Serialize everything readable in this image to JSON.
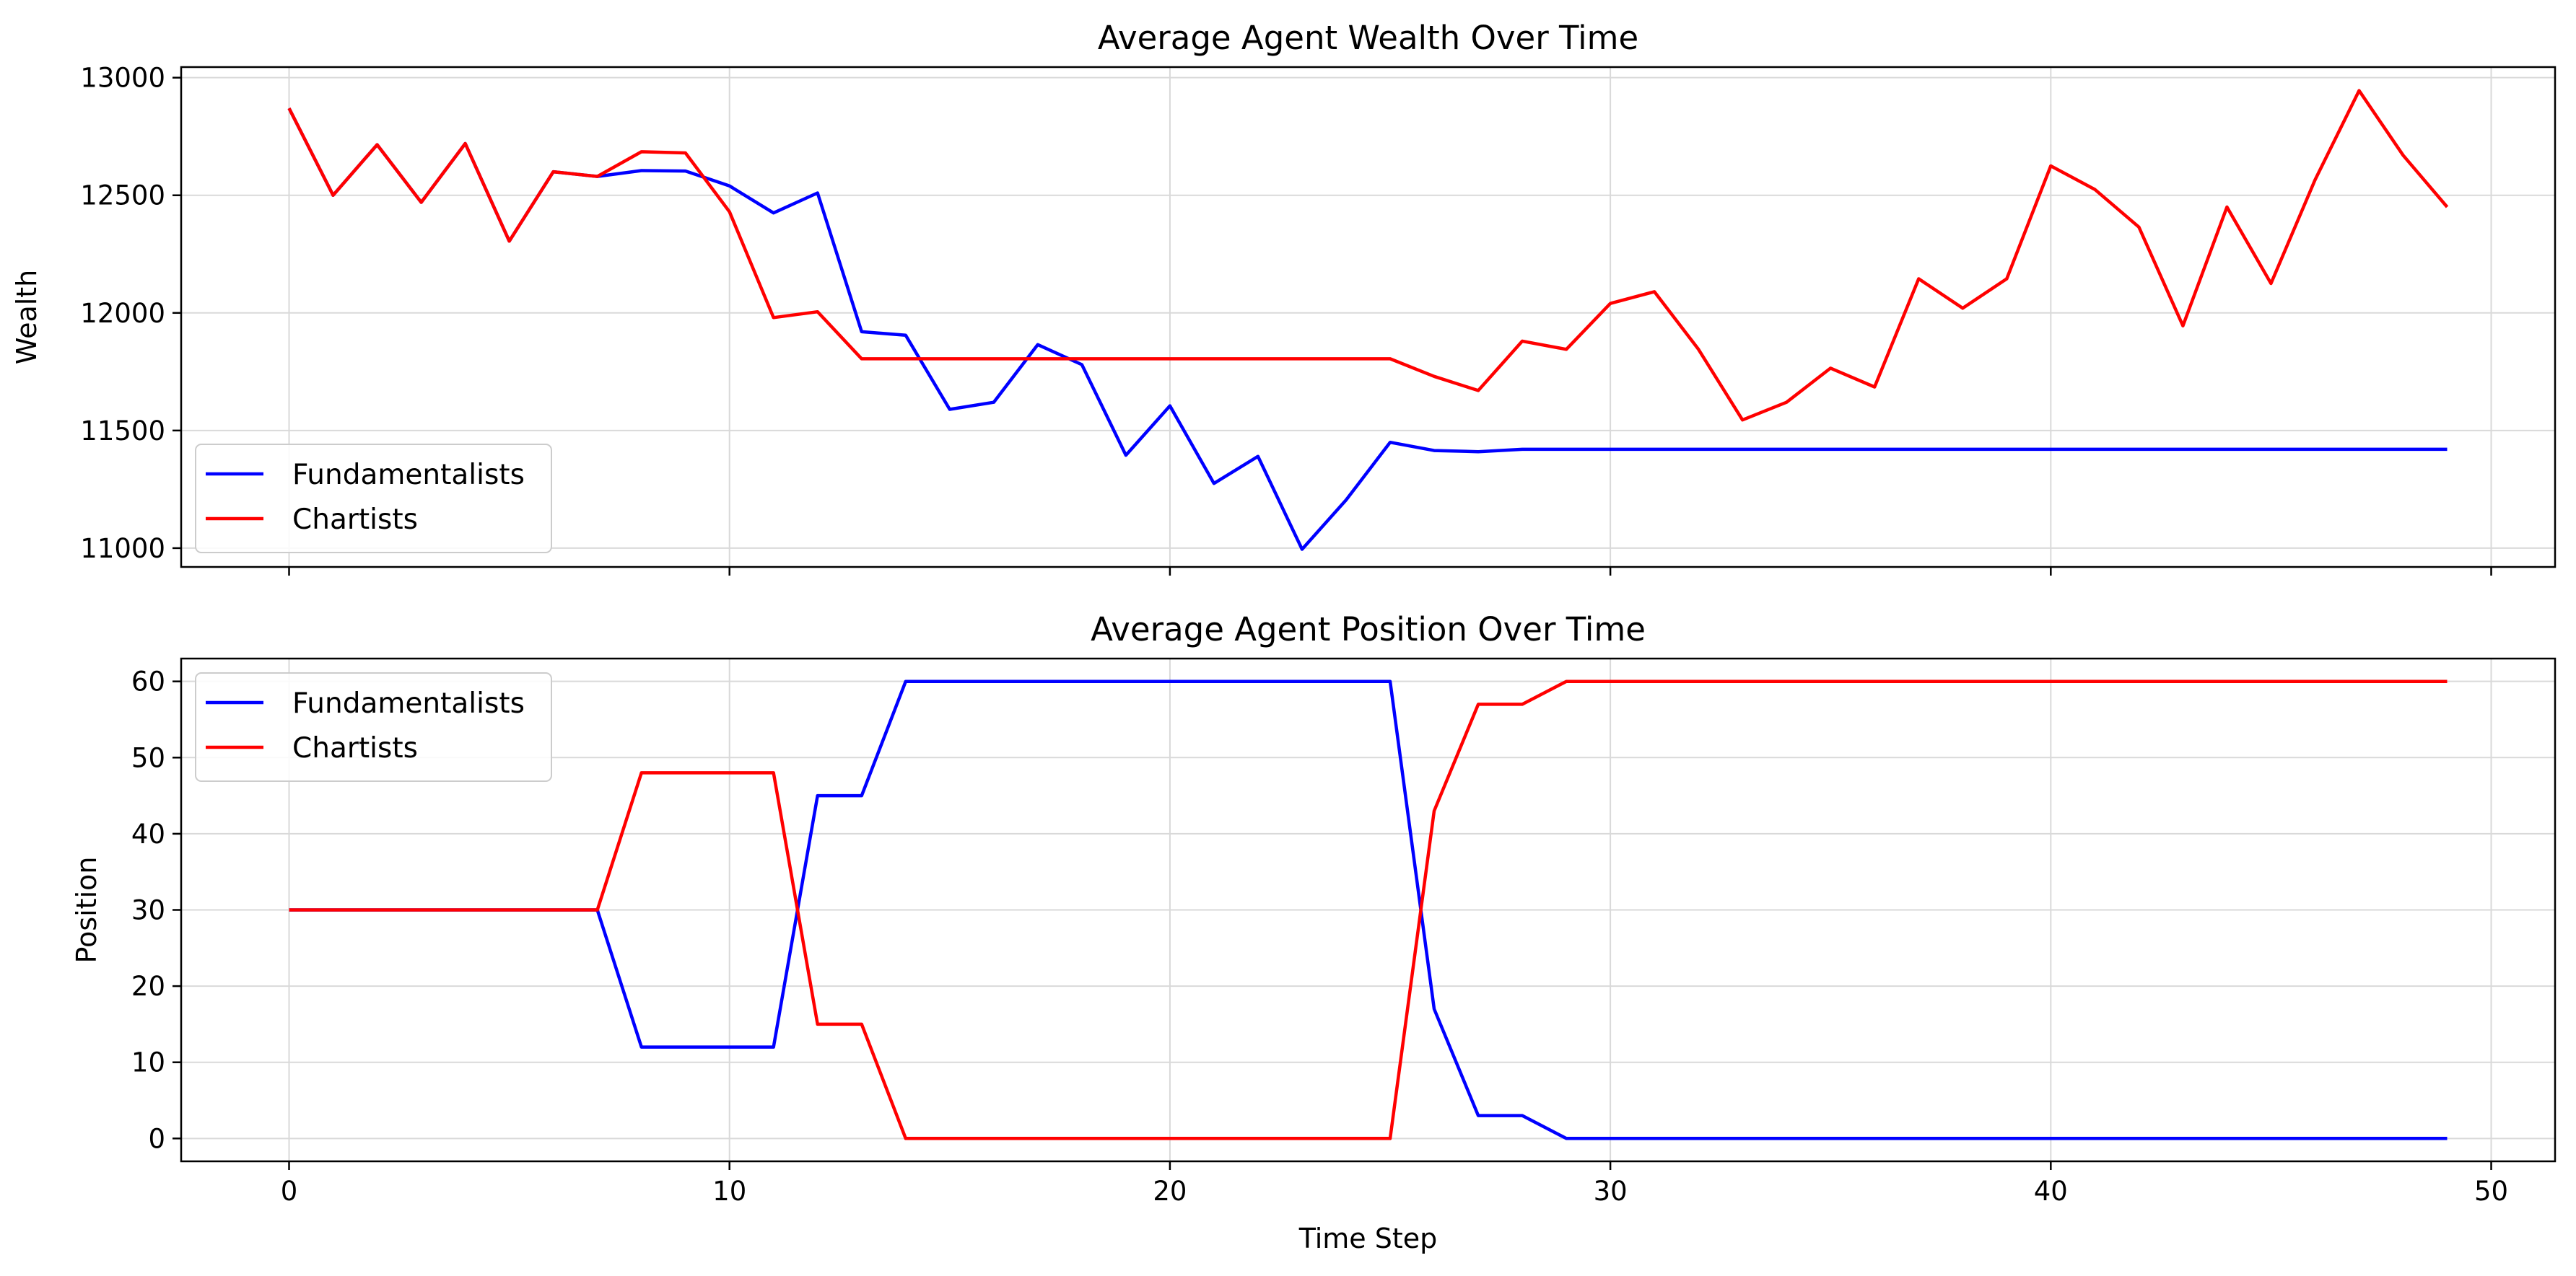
{
  "chart_data": [
    {
      "type": "line",
      "title": "Average Agent Wealth Over Time",
      "xlabel": "",
      "ylabel": "Wealth",
      "xlim": [
        -2.45,
        51.45
      ],
      "ylim": [
        10920,
        13045
      ],
      "xticks": [
        0,
        10,
        20,
        30,
        40,
        50
      ],
      "xtick_labels_visible": false,
      "yticks": [
        11000,
        11500,
        12000,
        12500,
        13000
      ],
      "ytick_labels": [
        "11000",
        "11500",
        "12000",
        "12500",
        "13000"
      ],
      "grid": true,
      "legend_position": "lower-left",
      "x": [
        0,
        1,
        2,
        3,
        4,
        5,
        6,
        7,
        8,
        9,
        10,
        11,
        12,
        13,
        14,
        15,
        16,
        17,
        18,
        19,
        20,
        21,
        22,
        23,
        24,
        25,
        26,
        27,
        28,
        29,
        30,
        31,
        32,
        33,
        34,
        35,
        36,
        37,
        38,
        39,
        40,
        41,
        42,
        43,
        44,
        45,
        46,
        47,
        48,
        49
      ],
      "series": [
        {
          "name": "Fundamentalists",
          "color": "#0000ff",
          "values": [
            12870,
            12500,
            12715,
            12470,
            12720,
            12305,
            12600,
            12580,
            12605,
            12603,
            12540,
            12425,
            12510,
            11920,
            11905,
            11590,
            11620,
            11865,
            11780,
            11395,
            11605,
            11275,
            11390,
            10995,
            11205,
            11450,
            11415,
            11410,
            11420,
            11420,
            11420,
            11420,
            11420,
            11420,
            11420,
            11420,
            11420,
            11420,
            11420,
            11420,
            11420,
            11420,
            11420,
            11420,
            11420,
            11420,
            11420,
            11420,
            11420,
            11420
          ]
        },
        {
          "name": "Chartists",
          "color": "#ff0000",
          "values": [
            12870,
            12500,
            12715,
            12470,
            12720,
            12305,
            12600,
            12580,
            12685,
            12680,
            12430,
            11980,
            12005,
            11805,
            11805,
            11805,
            11805,
            11805,
            11805,
            11805,
            11805,
            11805,
            11805,
            11805,
            11805,
            11805,
            11730,
            11670,
            11880,
            11845,
            12040,
            12090,
            11845,
            11545,
            11620,
            11765,
            11685,
            12145,
            12020,
            12145,
            12625,
            12525,
            12365,
            11945,
            12450,
            12125,
            12565,
            12945,
            12670,
            12450
          ]
        }
      ]
    },
    {
      "type": "line",
      "title": "Average Agent Position Over Time",
      "xlabel": "Time Step",
      "ylabel": "Position",
      "xlim": [
        -2.45,
        51.45
      ],
      "ylim": [
        -3,
        63
      ],
      "xticks": [
        0,
        10,
        20,
        30,
        40,
        50
      ],
      "xtick_labels": [
        "0",
        "10",
        "20",
        "30",
        "40",
        "50"
      ],
      "yticks": [
        0,
        10,
        20,
        30,
        40,
        50,
        60
      ],
      "ytick_labels": [
        "0",
        "10",
        "20",
        "30",
        "40",
        "50",
        "60"
      ],
      "grid": true,
      "legend_position": "upper-left",
      "x": [
        0,
        1,
        2,
        3,
        4,
        5,
        6,
        7,
        8,
        9,
        10,
        11,
        12,
        13,
        14,
        15,
        16,
        17,
        18,
        19,
        20,
        21,
        22,
        23,
        24,
        25,
        26,
        27,
        28,
        29,
        30,
        31,
        32,
        33,
        34,
        35,
        36,
        37,
        38,
        39,
        40,
        41,
        42,
        43,
        44,
        45,
        46,
        47,
        48,
        49
      ],
      "series": [
        {
          "name": "Fundamentalists",
          "color": "#0000ff",
          "values": [
            30,
            30,
            30,
            30,
            30,
            30,
            30,
            30,
            12,
            12,
            12,
            12,
            45,
            45,
            60,
            60,
            60,
            60,
            60,
            60,
            60,
            60,
            60,
            60,
            60,
            60,
            17,
            3,
            3,
            0,
            0,
            0,
            0,
            0,
            0,
            0,
            0,
            0,
            0,
            0,
            0,
            0,
            0,
            0,
            0,
            0,
            0,
            0,
            0,
            0
          ]
        },
        {
          "name": "Chartists",
          "color": "#ff0000",
          "values": [
            30,
            30,
            30,
            30,
            30,
            30,
            30,
            30,
            48,
            48,
            48,
            48,
            15,
            15,
            0,
            0,
            0,
            0,
            0,
            0,
            0,
            0,
            0,
            0,
            0,
            0,
            43,
            57,
            57,
            60,
            60,
            60,
            60,
            60,
            60,
            60,
            60,
            60,
            60,
            60,
            60,
            60,
            60,
            60,
            60,
            60,
            60,
            60,
            60,
            60
          ]
        }
      ]
    }
  ]
}
